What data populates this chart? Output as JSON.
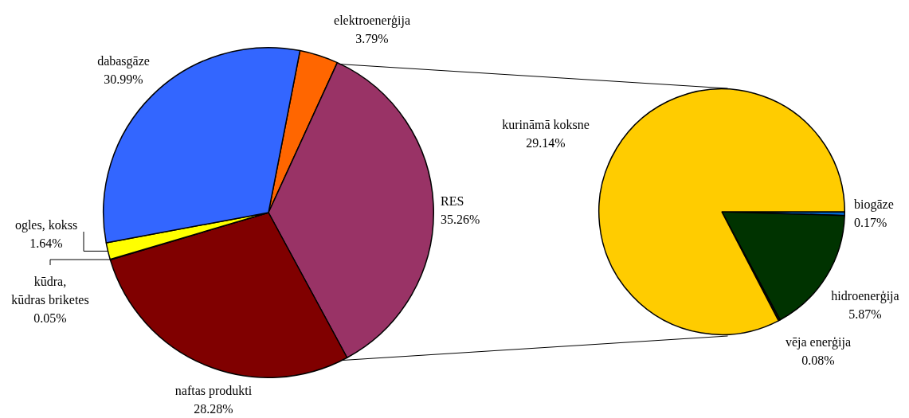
{
  "chart_data": [
    {
      "type": "pie",
      "categories": [
        "elektroenerģija",
        "RES",
        "naftas produkti",
        "kūdra, kūdras briketes",
        "ogles, kokss",
        "dabasgāze"
      ],
      "values": [
        3.79,
        35.26,
        28.28,
        0.05,
        1.64,
        30.99
      ],
      "colors": [
        "#ff6600",
        "#993366",
        "#800000",
        "#ccffff",
        "#ffff00",
        "#3366ff"
      ],
      "value_labels": [
        "3.79%",
        "35.26%",
        "28.28%",
        "0.05%",
        "1.64%",
        "30.99%"
      ]
    },
    {
      "type": "pie",
      "categories": [
        "biogāze",
        "hidroenerģija",
        "vēja enerģija",
        "kurināmā koksne"
      ],
      "values": [
        0.17,
        5.87,
        0.08,
        29.14
      ],
      "colors": [
        "#0066cc",
        "#003300",
        "#1a1a1a",
        "#ffcc00"
      ],
      "value_labels": [
        "0.17%",
        "5.87%",
        "0.08%",
        "29.14%"
      ]
    }
  ]
}
